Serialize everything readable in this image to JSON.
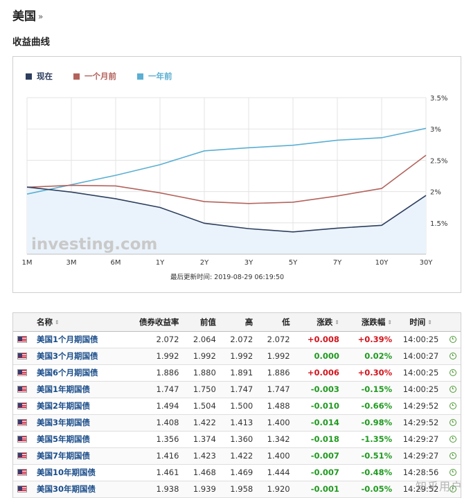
{
  "header": {
    "title": "美国",
    "chevron": "»",
    "section_title": "收益曲线"
  },
  "chart": {
    "legend": [
      {
        "label": "现在",
        "color": "#2d3e5e"
      },
      {
        "label": "一个月前",
        "color": "#b3635c"
      },
      {
        "label": "一年前",
        "color": "#5aafd2"
      }
    ],
    "watermark_text": "investing.com",
    "update_time": "最后更新时间: 2019-08-29 06:19:50"
  },
  "chart_data": {
    "type": "line",
    "categories": [
      "1M",
      "3M",
      "6M",
      "1Y",
      "2Y",
      "3Y",
      "5Y",
      "7Y",
      "10Y",
      "30Y"
    ],
    "series": [
      {
        "name": "现在",
        "color": "#2d3e5e",
        "values": [
          2.072,
          1.992,
          1.886,
          1.747,
          1.494,
          1.408,
          1.356,
          1.416,
          1.461,
          1.938
        ]
      },
      {
        "name": "一个月前",
        "color": "#b3635c",
        "values": [
          2.07,
          2.1,
          2.09,
          1.98,
          1.84,
          1.81,
          1.83,
          1.93,
          2.05,
          2.58
        ]
      },
      {
        "name": "一年前",
        "color": "#5aafd2",
        "values": [
          1.96,
          2.11,
          2.26,
          2.43,
          2.65,
          2.7,
          2.74,
          2.82,
          2.86,
          3.01
        ]
      }
    ],
    "y_ticks": [
      "3.5%",
      "3%",
      "2.5%",
      "2%",
      "1.5%"
    ],
    "ylim": [
      1.0,
      3.5
    ],
    "grid": true
  },
  "table": {
    "columns": [
      "名称",
      "债券收益率",
      "前值",
      "高",
      "低",
      "涨跌",
      "涨跌幅",
      "时间"
    ],
    "sort_icon": "⇕",
    "rows": [
      {
        "name": "美国1个月期国债",
        "yield": "2.072",
        "prev": "2.064",
        "high": "2.072",
        "low": "2.072",
        "chg": "+0.008",
        "pct": "+0.39%",
        "time": "14:00:25",
        "dir": "pos"
      },
      {
        "name": "美国3个月期国债",
        "yield": "1.992",
        "prev": "1.992",
        "high": "1.992",
        "low": "1.992",
        "chg": "0.000",
        "pct": "0.02%",
        "time": "14:00:27",
        "dir": "neg"
      },
      {
        "name": "美国6个月期国债",
        "yield": "1.886",
        "prev": "1.880",
        "high": "1.891",
        "low": "1.886",
        "chg": "+0.006",
        "pct": "+0.30%",
        "time": "14:00:25",
        "dir": "pos"
      },
      {
        "name": "美国1年期国债",
        "yield": "1.747",
        "prev": "1.750",
        "high": "1.747",
        "low": "1.747",
        "chg": "-0.003",
        "pct": "-0.15%",
        "time": "14:00:25",
        "dir": "neg"
      },
      {
        "name": "美国2年期国债",
        "yield": "1.494",
        "prev": "1.504",
        "high": "1.500",
        "low": "1.488",
        "chg": "-0.010",
        "pct": "-0.66%",
        "time": "14:29:52",
        "dir": "neg"
      },
      {
        "name": "美国3年期国债",
        "yield": "1.408",
        "prev": "1.422",
        "high": "1.413",
        "low": "1.400",
        "chg": "-0.014",
        "pct": "-0.98%",
        "time": "14:29:52",
        "dir": "neg"
      },
      {
        "name": "美国5年期国债",
        "yield": "1.356",
        "prev": "1.374",
        "high": "1.360",
        "low": "1.342",
        "chg": "-0.018",
        "pct": "-1.35%",
        "time": "14:29:27",
        "dir": "neg"
      },
      {
        "name": "美国7年期国债",
        "yield": "1.416",
        "prev": "1.423",
        "high": "1.422",
        "low": "1.400",
        "chg": "-0.007",
        "pct": "-0.51%",
        "time": "14:29:27",
        "dir": "neg"
      },
      {
        "name": "美国10年期国债",
        "yield": "1.461",
        "prev": "1.468",
        "high": "1.469",
        "low": "1.444",
        "chg": "-0.007",
        "pct": "-0.48%",
        "time": "14:28:56",
        "dir": "neg"
      },
      {
        "name": "美国30年期国债",
        "yield": "1.938",
        "prev": "1.939",
        "high": "1.958",
        "low": "1.920",
        "chg": "-0.001",
        "pct": "-0.05%",
        "time": "14:29:52",
        "dir": "neg"
      }
    ]
  },
  "page_watermark": "知乎用户",
  "colors": {
    "positive": "#d3141c",
    "negative": "#1f9a1f",
    "link": "#1a4d8a",
    "clock": "#4a9a32"
  }
}
